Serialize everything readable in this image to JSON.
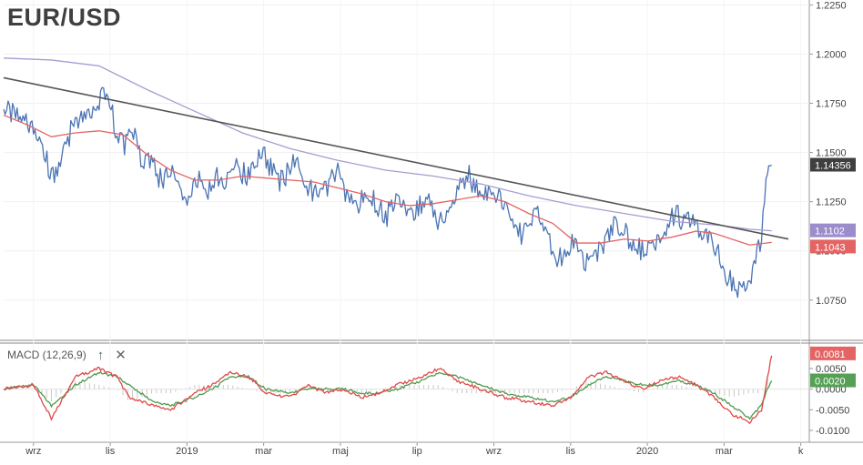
{
  "header": {
    "title": "EUR/USD"
  },
  "macd_panel": {
    "label": "MACD (12,26,9)",
    "up_icon": "↑",
    "close_icon": "✕"
  },
  "colors": {
    "price": "#4a74b4",
    "ma_short": "#e46464",
    "ma_long": "#a89cd2",
    "trendline": "#555555",
    "macd": "#e04848",
    "signal": "#4e9a4e",
    "hist": "#c8c8c8",
    "price_tag": "#3f3f3f",
    "ma_long_tag": "#9b8ccc",
    "ma_short_tag": "#e46464",
    "macd_tag": "#e46464",
    "signal_tag": "#55a055"
  },
  "chart_data": [
    {
      "type": "line",
      "title": "EUR/USD",
      "ylim": [
        1.055,
        1.2275
      ],
      "y_ticks": [
        "1.2250",
        "1.2000",
        "1.1750",
        "1.1500",
        "1.1250",
        "1.1000",
        "1.0750"
      ],
      "x_ticks": [
        "wrz",
        "lis",
        "2019",
        "mar",
        "maj",
        "lip",
        "wrz",
        "lis",
        "2020",
        "mar",
        "k"
      ],
      "last_values": {
        "price": "1.14356",
        "ma_long": "1.1102",
        "ma_short": "1.1043"
      },
      "series": [
        {
          "role": "price",
          "color": "#4a74b4",
          "points": [
            [
              0,
              1.172
            ],
            [
              3,
              1.166
            ],
            [
              6,
              1.16
            ],
            [
              7,
              1.148
            ],
            [
              8,
              1.138
            ],
            [
              9,
              1.143
            ],
            [
              11,
              1.158
            ],
            [
              12,
              1.168
            ],
            [
              14,
              1.166
            ],
            [
              15,
              1.173
            ],
            [
              16,
              1.176
            ],
            [
              17,
              1.18
            ],
            [
              18,
              1.172
            ],
            [
              19,
              1.16
            ],
            [
              20,
              1.154
            ],
            [
              22,
              1.158
            ],
            [
              23,
              1.146
            ],
            [
              25,
              1.143
            ],
            [
              26,
              1.136
            ],
            [
              27,
              1.136
            ],
            [
              28,
              1.142
            ],
            [
              29,
              1.131
            ],
            [
              30,
              1.128
            ],
            [
              31,
              1.124
            ],
            [
              32,
              1.134
            ],
            [
              33,
              1.136
            ],
            [
              34,
              1.13
            ],
            [
              35,
              1.134
            ],
            [
              36,
              1.138
            ],
            [
              37,
              1.132
            ],
            [
              38,
              1.136
            ],
            [
              39,
              1.144
            ],
            [
              40,
              1.14
            ],
            [
              41,
              1.138
            ],
            [
              42,
              1.146
            ],
            [
              43,
              1.151
            ],
            [
              44,
              1.148
            ],
            [
              45,
              1.14
            ],
            [
              46,
              1.135
            ],
            [
              47,
              1.136
            ],
            [
              48,
              1.143
            ],
            [
              49,
              1.145
            ],
            [
              50,
              1.14
            ],
            [
              51,
              1.133
            ],
            [
              52,
              1.13
            ],
            [
              53,
              1.128
            ],
            [
              54,
              1.133
            ],
            [
              55,
              1.136
            ],
            [
              56,
              1.141
            ],
            [
              57,
              1.133
            ],
            [
              58,
              1.124
            ],
            [
              59,
              1.122
            ],
            [
              60,
              1.127
            ],
            [
              61,
              1.132
            ],
            [
              62,
              1.127
            ],
            [
              63,
              1.121
            ],
            [
              64,
              1.117
            ],
            [
              65,
              1.121
            ],
            [
              66,
              1.13
            ],
            [
              67,
              1.126
            ],
            [
              68,
              1.12
            ],
            [
              69,
              1.12
            ],
            [
              70,
              1.123
            ],
            [
              71,
              1.127
            ],
            [
              72,
              1.12
            ],
            [
              73,
              1.115
            ],
            [
              74,
              1.118
            ],
            [
              75,
              1.122
            ],
            [
              76,
              1.128
            ],
            [
              77,
              1.135
            ],
            [
              78,
              1.138
            ],
            [
              79,
              1.133
            ],
            [
              80,
              1.128
            ],
            [
              81,
              1.13
            ],
            [
              82,
              1.126
            ],
            [
              83,
              1.128
            ],
            [
              84,
              1.121
            ],
            [
              85,
              1.117
            ],
            [
              86,
              1.11
            ],
            [
              87,
              1.107
            ],
            [
              88,
              1.115
            ],
            [
              89,
              1.121
            ],
            [
              90,
              1.113
            ],
            [
              91,
              1.106
            ],
            [
              92,
              1.101
            ],
            [
              93,
              1.095
            ],
            [
              94,
              1.098
            ],
            [
              95,
              1.104
            ],
            [
              96,
              1.1
            ],
            [
              97,
              1.097
            ],
            [
              98,
              1.092
            ],
            [
              99,
              1.097
            ],
            [
              100,
              1.101
            ],
            [
              101,
              1.106
            ],
            [
              102,
              1.111
            ],
            [
              103,
              1.113
            ],
            [
              104,
              1.11
            ],
            [
              105,
              1.103
            ],
            [
              106,
              1.1
            ],
            [
              107,
              1.101
            ],
            [
              108,
              1.104
            ],
            [
              109,
              1.102
            ],
            [
              110,
              1.107
            ],
            [
              111,
              1.11
            ],
            [
              112,
              1.116
            ],
            [
              113,
              1.118
            ],
            [
              114,
              1.113
            ],
            [
              115,
              1.117
            ],
            [
              116,
              1.113
            ],
            [
              117,
              1.111
            ],
            [
              118,
              1.106
            ],
            [
              119,
              1.101
            ],
            [
              120,
              1.096
            ],
            [
              121,
              1.089
            ],
            [
              122,
              1.084
            ],
            [
              123,
              1.081
            ],
            [
              124,
              1.08
            ],
            [
              125,
              1.086
            ],
            [
              126,
              1.098
            ],
            [
              127,
              1.108
            ],
            [
              127.5,
              1.124
            ],
            [
              128,
              1.138
            ],
            [
              128.4,
              1.149
            ],
            [
              128.7,
              1.1436
            ]
          ]
        },
        {
          "role": "moving average (short)",
          "color": "#e46464",
          "points": [
            [
              0,
              1.169
            ],
            [
              4,
              1.164
            ],
            [
              8,
              1.158
            ],
            [
              12,
              1.16
            ],
            [
              16,
              1.161
            ],
            [
              20,
              1.159
            ],
            [
              24,
              1.149
            ],
            [
              28,
              1.141
            ],
            [
              32,
              1.136
            ],
            [
              36,
              1.136
            ],
            [
              40,
              1.138
            ],
            [
              44,
              1.137
            ],
            [
              48,
              1.136
            ],
            [
              52,
              1.135
            ],
            [
              56,
              1.132
            ],
            [
              60,
              1.129
            ],
            [
              64,
              1.125
            ],
            [
              68,
              1.123
            ],
            [
              72,
              1.124
            ],
            [
              76,
              1.126
            ],
            [
              80,
              1.128
            ],
            [
              84,
              1.125
            ],
            [
              88,
              1.119
            ],
            [
              92,
              1.114
            ],
            [
              96,
              1.104
            ],
            [
              100,
              1.104
            ],
            [
              104,
              1.106
            ],
            [
              108,
              1.105
            ],
            [
              112,
              1.107
            ],
            [
              116,
              1.11
            ],
            [
              119,
              1.109
            ],
            [
              122,
              1.106
            ],
            [
              125,
              1.103
            ],
            [
              128.7,
              1.1043
            ]
          ]
        },
        {
          "role": "moving average (long)",
          "color": "#a89cd2",
          "points": [
            [
              0,
              1.198
            ],
            [
              8,
              1.197
            ],
            [
              16,
              1.194
            ],
            [
              24,
              1.182
            ],
            [
              32,
              1.171
            ],
            [
              40,
              1.16
            ],
            [
              48,
              1.152
            ],
            [
              56,
              1.146
            ],
            [
              64,
              1.141
            ],
            [
              72,
              1.138
            ],
            [
              80,
              1.134
            ],
            [
              88,
              1.128
            ],
            [
              96,
              1.123
            ],
            [
              104,
              1.119
            ],
            [
              112,
              1.115
            ],
            [
              120,
              1.113
            ],
            [
              125,
              1.111
            ],
            [
              128.7,
              1.1102
            ]
          ]
        },
        {
          "role": "trendline",
          "color": "#555555",
          "points": [
            [
              0,
              1.188
            ],
            [
              131.5,
              1.106
            ]
          ]
        }
      ]
    },
    {
      "type": "line",
      "title": "MACD (12,26,9)",
      "ylim": [
        -0.012,
        0.0105
      ],
      "y_ticks": [
        "0.0050",
        "0.0000",
        "-0.0050",
        "-0.0100"
      ],
      "last_values": {
        "macd": "0.0081",
        "signal": "0.0020"
      },
      "series": [
        {
          "role": "MACD",
          "color": "#e04848",
          "points": [
            [
              0,
              0.0
            ],
            [
              5,
              0.001
            ],
            [
              8,
              -0.007
            ],
            [
              12,
              0.003
            ],
            [
              16,
              0.005
            ],
            [
              19,
              0.003
            ],
            [
              21,
              -0.002
            ],
            [
              25,
              -0.004
            ],
            [
              28,
              -0.005
            ],
            [
              32,
              -0.001
            ],
            [
              35,
              0.001
            ],
            [
              38,
              0.004
            ],
            [
              41,
              0.003
            ],
            [
              44,
              -0.001
            ],
            [
              48,
              -0.002
            ],
            [
              51,
              0.001
            ],
            [
              54,
              -0.001
            ],
            [
              57,
              0.0
            ],
            [
              60,
              -0.002
            ],
            [
              63,
              -0.001
            ],
            [
              66,
              0.001
            ],
            [
              70,
              0.003
            ],
            [
              73,
              0.005
            ],
            [
              76,
              0.002
            ],
            [
              80,
              0.0
            ],
            [
              84,
              -0.002
            ],
            [
              88,
              -0.003
            ],
            [
              92,
              -0.004
            ],
            [
              95,
              -0.002
            ],
            [
              98,
              0.003
            ],
            [
              101,
              0.004
            ],
            [
              104,
              0.002
            ],
            [
              107,
              0.0
            ],
            [
              110,
              0.002
            ],
            [
              113,
              0.003
            ],
            [
              116,
              0.001
            ],
            [
              119,
              -0.002
            ],
            [
              122,
              -0.006
            ],
            [
              125,
              -0.008
            ],
            [
              127,
              -0.005
            ],
            [
              128,
              0.003
            ],
            [
              128.7,
              0.0081
            ]
          ]
        },
        {
          "role": "signal",
          "color": "#4e9a4e",
          "points": [
            [
              0,
              0.0
            ],
            [
              5,
              0.001
            ],
            [
              8,
              -0.004
            ],
            [
              12,
              0.001
            ],
            [
              16,
              0.004
            ],
            [
              19,
              0.003
            ],
            [
              22,
              0.0
            ],
            [
              25,
              -0.003
            ],
            [
              28,
              -0.004
            ],
            [
              32,
              -0.002
            ],
            [
              35,
              0.0
            ],
            [
              38,
              0.003
            ],
            [
              41,
              0.003
            ],
            [
              44,
              0.0
            ],
            [
              48,
              -0.001
            ],
            [
              51,
              0.0
            ],
            [
              54,
              0.0
            ],
            [
              57,
              0.0
            ],
            [
              60,
              -0.001
            ],
            [
              63,
              -0.001
            ],
            [
              66,
              0.0
            ],
            [
              70,
              0.002
            ],
            [
              73,
              0.004
            ],
            [
              76,
              0.003
            ],
            [
              80,
              0.001
            ],
            [
              84,
              -0.001
            ],
            [
              88,
              -0.002
            ],
            [
              92,
              -0.003
            ],
            [
              95,
              -0.002
            ],
            [
              98,
              0.001
            ],
            [
              101,
              0.003
            ],
            [
              104,
              0.002
            ],
            [
              107,
              0.001
            ],
            [
              110,
              0.001
            ],
            [
              113,
              0.002
            ],
            [
              116,
              0.001
            ],
            [
              119,
              -0.001
            ],
            [
              122,
              -0.004
            ],
            [
              125,
              -0.007
            ],
            [
              127,
              -0.004
            ],
            [
              128,
              0.0
            ],
            [
              128.7,
              0.002
            ]
          ]
        }
      ]
    }
  ]
}
